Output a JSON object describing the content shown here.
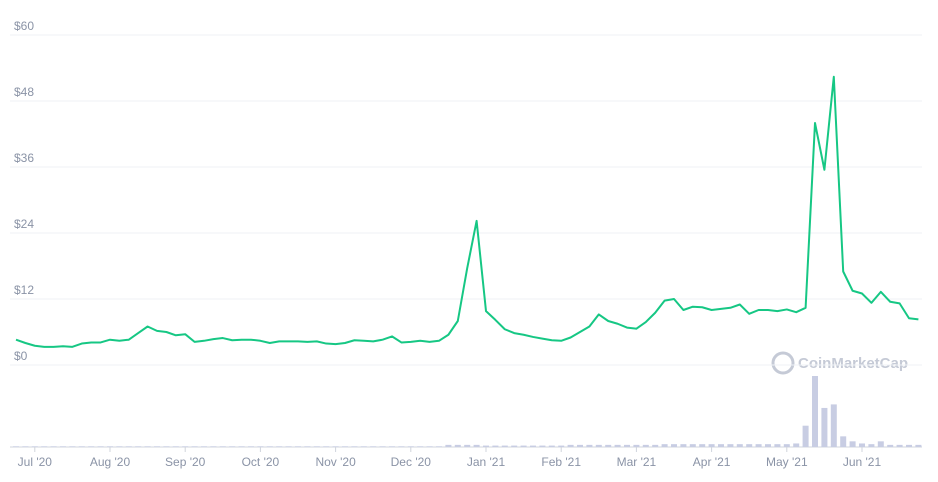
{
  "chart_data": {
    "type": "line",
    "categories": [
      null,
      null,
      "Jul '20",
      null,
      null,
      null,
      null,
      null,
      null,
      null,
      "Aug '20",
      null,
      null,
      null,
      null,
      null,
      null,
      null,
      "Sep '20",
      null,
      null,
      null,
      null,
      null,
      null,
      null,
      "Oct '20",
      null,
      null,
      null,
      null,
      null,
      null,
      null,
      "Nov '20",
      null,
      null,
      null,
      null,
      null,
      null,
      null,
      "Dec '20",
      null,
      null,
      null,
      null,
      null,
      null,
      null,
      "Jan '21",
      null,
      null,
      null,
      null,
      null,
      null,
      null,
      "Feb '21",
      null,
      null,
      null,
      null,
      null,
      null,
      null,
      "Mar '21",
      null,
      null,
      null,
      null,
      null,
      null,
      null,
      "Apr '21",
      null,
      null,
      null,
      null,
      null,
      null,
      null,
      "May '21",
      null,
      null,
      null,
      null,
      null,
      null,
      null,
      "Jun '21",
      null,
      null,
      null,
      null,
      null,
      null
    ],
    "series": [
      {
        "color": "#16c784",
        "values": [
          4.6,
          4.0,
          3.5,
          3.3,
          3.3,
          3.4,
          3.3,
          3.9,
          4.1,
          4.1,
          4.6,
          4.4,
          4.6,
          5.8,
          7.0,
          6.2,
          6.0,
          5.4,
          5.6,
          4.2,
          4.4,
          4.7,
          4.9,
          4.5,
          4.6,
          4.6,
          4.4,
          4.0,
          4.3,
          4.3,
          4.3,
          4.2,
          4.3,
          3.9,
          3.8,
          4.0,
          4.5,
          4.4,
          4.3,
          4.6,
          5.2,
          4.1,
          4.2,
          4.4,
          4.2,
          4.4,
          5.5,
          8.0,
          17.6,
          26.2,
          9.8,
          8.2,
          6.5,
          5.8,
          5.5,
          5.1,
          4.8,
          4.5,
          4.4,
          5.0,
          6.0,
          7.0,
          9.2,
          8.0,
          7.5,
          6.8,
          6.6,
          7.8,
          9.5,
          11.7,
          12.0,
          10.0,
          10.6,
          10.5,
          10.0,
          10.2,
          10.4,
          11.0,
          9.3,
          10.0,
          10.0,
          9.8,
          10.1,
          9.6,
          10.4,
          44,
          35.5,
          52.4,
          17,
          13.5,
          13.0,
          11.3,
          13.3,
          11.5,
          11.2,
          8.5,
          8.3
        ]
      }
    ],
    "volume": {
      "color": "#c8cde3",
      "lim": [
        0,
        100
      ],
      "values": [
        1,
        1,
        1,
        1,
        1,
        1,
        1,
        1,
        1,
        1,
        1,
        1,
        1,
        1,
        1,
        1,
        1,
        1,
        1,
        1,
        1,
        1,
        1,
        1,
        1,
        1,
        1,
        1,
        1,
        1,
        1,
        1,
        1,
        1,
        1,
        1,
        1,
        1,
        1,
        1,
        1,
        1,
        1,
        1,
        1,
        1,
        3,
        3,
        3,
        3,
        2,
        2,
        2,
        2,
        2,
        2,
        2,
        2,
        2,
        3,
        3,
        3,
        3,
        3,
        3,
        3,
        3,
        3,
        3,
        4,
        4,
        4,
        4,
        4,
        4,
        4,
        4,
        4,
        4,
        4,
        4,
        4,
        4,
        5,
        30,
        100,
        55,
        60,
        15,
        8,
        5,
        4,
        8,
        3,
        3,
        3,
        3
      ]
    },
    "ylim": [
      0,
      60
    ],
    "yticks": [
      {
        "value": 0,
        "label": "$0"
      },
      {
        "value": 12,
        "label": "$12"
      },
      {
        "value": 24,
        "label": "$24"
      },
      {
        "value": 36,
        "label": "$36"
      },
      {
        "value": 48,
        "label": "$48"
      },
      {
        "value": 60,
        "label": "$60"
      }
    ],
    "grid": true,
    "watermark": "CoinMarketCap"
  }
}
